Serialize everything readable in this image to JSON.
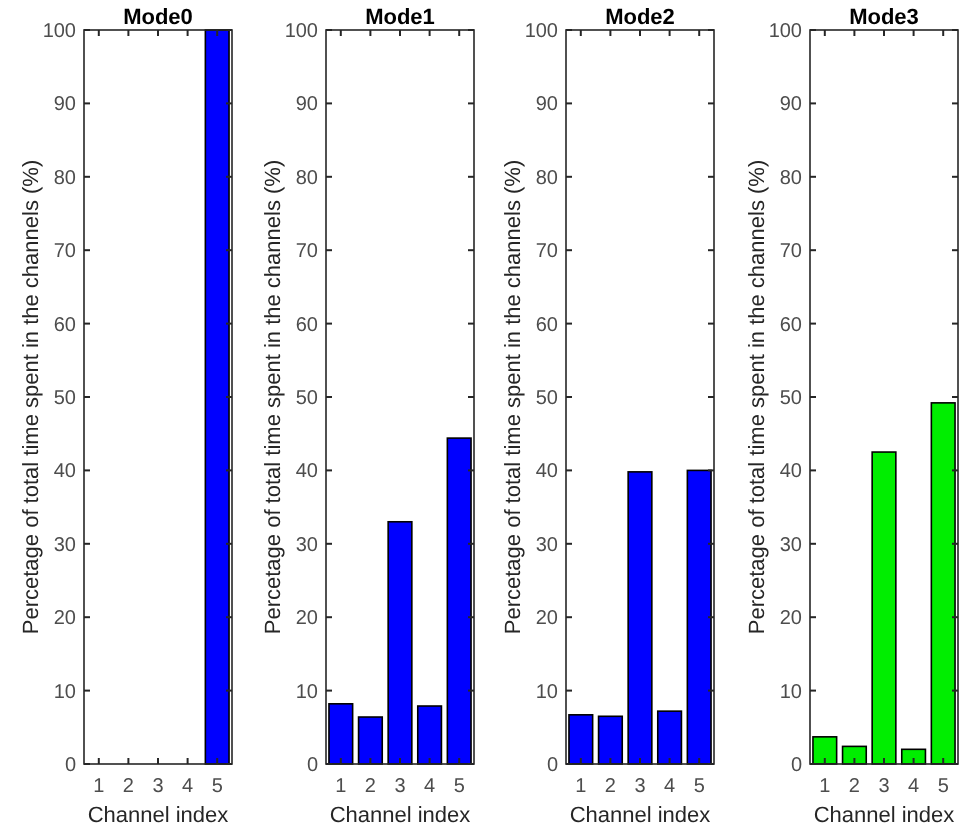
{
  "chart_data": [
    {
      "type": "bar",
      "title": "Mode0",
      "xlabel": "Channel index",
      "ylabel": "Percetage of total time spent in the channels (%)",
      "categories": [
        "1",
        "2",
        "3",
        "4",
        "5"
      ],
      "values": [
        0,
        0,
        0,
        0,
        100
      ],
      "color": "#0000ff",
      "ylim": [
        0,
        100
      ],
      "yticks": [
        0,
        10,
        20,
        30,
        40,
        50,
        60,
        70,
        80,
        90,
        100
      ],
      "grid": false
    },
    {
      "type": "bar",
      "title": "Mode1",
      "xlabel": "Channel index",
      "ylabel": "Percetage of total time spent in the channels (%)",
      "categories": [
        "1",
        "2",
        "3",
        "4",
        "5"
      ],
      "values": [
        8.2,
        6.4,
        33,
        7.9,
        44.4
      ],
      "color": "#0000ff",
      "ylim": [
        0,
        100
      ],
      "yticks": [
        0,
        10,
        20,
        30,
        40,
        50,
        60,
        70,
        80,
        90,
        100
      ],
      "grid": false
    },
    {
      "type": "bar",
      "title": "Mode2",
      "xlabel": "Channel index",
      "ylabel": "Percetage of total time spent in the channels (%)",
      "categories": [
        "1",
        "2",
        "3",
        "4",
        "5"
      ],
      "values": [
        6.7,
        6.5,
        39.8,
        7.2,
        40
      ],
      "color": "#0000ff",
      "ylim": [
        0,
        100
      ],
      "yticks": [
        0,
        10,
        20,
        30,
        40,
        50,
        60,
        70,
        80,
        90,
        100
      ],
      "grid": false
    },
    {
      "type": "bar",
      "title": "Mode3",
      "xlabel": "Channel index",
      "ylabel": "Percetage of total time spent in the channels (%)",
      "categories": [
        "1",
        "2",
        "3",
        "4",
        "5"
      ],
      "values": [
        3.7,
        2.4,
        42.5,
        2.0,
        49.2
      ],
      "color": "#00ee00",
      "ylim": [
        0,
        100
      ],
      "yticks": [
        0,
        10,
        20,
        30,
        40,
        50,
        60,
        70,
        80,
        90,
        100
      ],
      "grid": false
    }
  ]
}
